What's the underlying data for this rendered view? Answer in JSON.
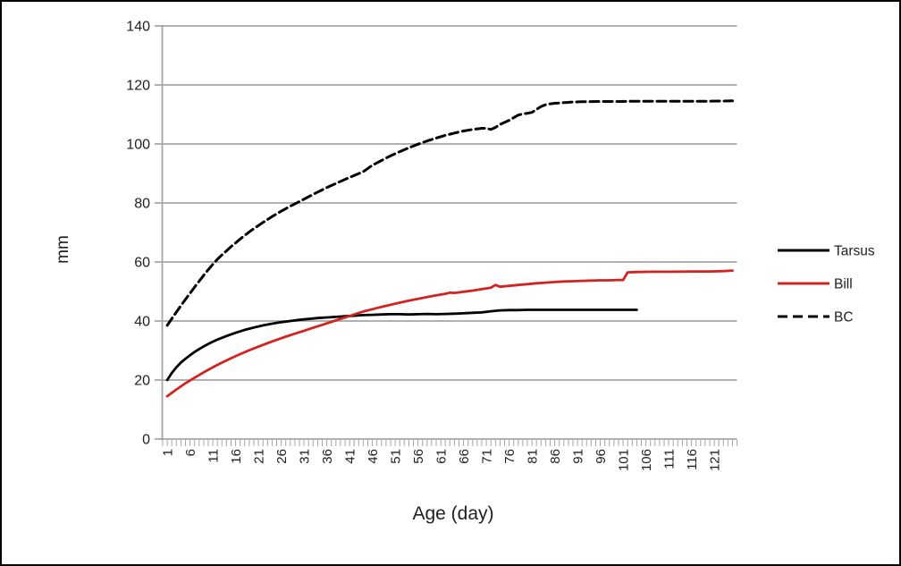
{
  "chart_data": {
    "type": "line",
    "title": "",
    "xlabel": "Age (day)",
    "ylabel": "mm",
    "xlim": [
      0,
      126
    ],
    "ylim": [
      0,
      140
    ],
    "yticks": [
      0,
      20,
      40,
      60,
      80,
      100,
      120,
      140
    ],
    "xtick_labels": [
      "1",
      "6",
      "11",
      "16",
      "21",
      "26",
      "31",
      "36",
      "41",
      "46",
      "51",
      "56",
      "61",
      "66",
      "71",
      "76",
      "81",
      "86",
      "91",
      "96",
      "101",
      "106",
      "111",
      "116",
      "121"
    ],
    "minor_xticks": "one tick per day from day 0 to day 126",
    "grid": "horizontal gridlines every 20 mm",
    "legend_position": "right",
    "colors": {
      "gridline": "#a6a6a6",
      "axis": "#a6a6a6",
      "label_text": "#1f1f1f",
      "tarsus": "#000000",
      "bill": "#d12420",
      "bc": "#000000"
    },
    "series": [
      {
        "name": "Tarsus",
        "style": "solid",
        "color_key": "tarsus",
        "points": [
          [
            1,
            20
          ],
          [
            2,
            22.4
          ],
          [
            3,
            24.3
          ],
          [
            4,
            25.9
          ],
          [
            5,
            27.2
          ],
          [
            6,
            28.4
          ],
          [
            7,
            29.5
          ],
          [
            8,
            30.5
          ],
          [
            9,
            31.4
          ],
          [
            10,
            32.2
          ],
          [
            11,
            33
          ],
          [
            12,
            33.7
          ],
          [
            13,
            34.3
          ],
          [
            14,
            34.9
          ],
          [
            15,
            35.5
          ],
          [
            16,
            36
          ],
          [
            17,
            36.5
          ],
          [
            18,
            37
          ],
          [
            19,
            37.4
          ],
          [
            20,
            37.8
          ],
          [
            22,
            38.5
          ],
          [
            24,
            39.1
          ],
          [
            26,
            39.6
          ],
          [
            28,
            40
          ],
          [
            30,
            40.4
          ],
          [
            32,
            40.7
          ],
          [
            34,
            41
          ],
          [
            36,
            41.2
          ],
          [
            38,
            41.4
          ],
          [
            40,
            41.6
          ],
          [
            42,
            41.8
          ],
          [
            44,
            42
          ],
          [
            46,
            42.1
          ],
          [
            48,
            42.2
          ],
          [
            50,
            42.3
          ],
          [
            52,
            42.3
          ],
          [
            54,
            42.2
          ],
          [
            56,
            42.3
          ],
          [
            58,
            42.4
          ],
          [
            60,
            42.3
          ],
          [
            62,
            42.4
          ],
          [
            64,
            42.5
          ],
          [
            66,
            42.6
          ],
          [
            68,
            42.8
          ],
          [
            70,
            42.9
          ],
          [
            72,
            43.3
          ],
          [
            74,
            43.6
          ],
          [
            76,
            43.7
          ],
          [
            78,
            43.7
          ],
          [
            80,
            43.8
          ],
          [
            84,
            43.8
          ],
          [
            88,
            43.8
          ],
          [
            92,
            43.8
          ],
          [
            96,
            43.8
          ],
          [
            100,
            43.8
          ],
          [
            104,
            43.8
          ]
        ]
      },
      {
        "name": "Bill",
        "style": "solid",
        "color_key": "bill",
        "points": [
          [
            1,
            14.5
          ],
          [
            3,
            16.8
          ],
          [
            5,
            18.9
          ],
          [
            7,
            20.8
          ],
          [
            9,
            22.6
          ],
          [
            11,
            24.3
          ],
          [
            13,
            25.9
          ],
          [
            15,
            27.4
          ],
          [
            17,
            28.8
          ],
          [
            19,
            30.1
          ],
          [
            21,
            31.3
          ],
          [
            23,
            32.5
          ],
          [
            25,
            33.6
          ],
          [
            27,
            34.7
          ],
          [
            29,
            35.7
          ],
          [
            31,
            36.7
          ],
          [
            33,
            37.7
          ],
          [
            35,
            38.7
          ],
          [
            37,
            39.7
          ],
          [
            38,
            40.2
          ],
          [
            39,
            40.7
          ],
          [
            40,
            41.2
          ],
          [
            41,
            41.7
          ],
          [
            42,
            42.2
          ],
          [
            43,
            42.7
          ],
          [
            44,
            43.2
          ],
          [
            45,
            43.6
          ],
          [
            46,
            44
          ],
          [
            48,
            44.8
          ],
          [
            50,
            45.5
          ],
          [
            52,
            46.2
          ],
          [
            54,
            46.9
          ],
          [
            56,
            47.5
          ],
          [
            58,
            48.1
          ],
          [
            60,
            48.7
          ],
          [
            62,
            49.2
          ],
          [
            63,
            49.6
          ],
          [
            64,
            49.5
          ],
          [
            66,
            49.9
          ],
          [
            68,
            50.3
          ],
          [
            70,
            50.8
          ],
          [
            72,
            51.3
          ],
          [
            73,
            52.2
          ],
          [
            74,
            51.6
          ],
          [
            76,
            51.9
          ],
          [
            78,
            52.2
          ],
          [
            80,
            52.5
          ],
          [
            82,
            52.8
          ],
          [
            84,
            53
          ],
          [
            86,
            53.2
          ],
          [
            88,
            53.4
          ],
          [
            90,
            53.5
          ],
          [
            92,
            53.6
          ],
          [
            94,
            53.7
          ],
          [
            96,
            53.8
          ],
          [
            98,
            53.8
          ],
          [
            100,
            53.9
          ],
          [
            101,
            53.9
          ],
          [
            102,
            56.5
          ],
          [
            104,
            56.6
          ],
          [
            108,
            56.7
          ],
          [
            112,
            56.7
          ],
          [
            116,
            56.8
          ],
          [
            120,
            56.8
          ],
          [
            123,
            56.9
          ],
          [
            125,
            57.1
          ]
        ]
      },
      {
        "name": "BC",
        "style": "dashed",
        "color_key": "bc",
        "points": [
          [
            1,
            38.5
          ],
          [
            2,
            40.8
          ],
          [
            3,
            43
          ],
          [
            4,
            45.2
          ],
          [
            5,
            47.3
          ],
          [
            6,
            49.4
          ],
          [
            7,
            51.5
          ],
          [
            8,
            53.5
          ],
          [
            9,
            55.5
          ],
          [
            10,
            57.4
          ],
          [
            11,
            59.2
          ],
          [
            12,
            60.9
          ],
          [
            13,
            62.4
          ],
          [
            14,
            63.8
          ],
          [
            15,
            65.2
          ],
          [
            16,
            66.5
          ],
          [
            17,
            67.8
          ],
          [
            18,
            69
          ],
          [
            19,
            70.2
          ],
          [
            20,
            71.3
          ],
          [
            22,
            73.4
          ],
          [
            24,
            75.4
          ],
          [
            26,
            77.2
          ],
          [
            28,
            78.9
          ],
          [
            30,
            80.5
          ],
          [
            32,
            82.1
          ],
          [
            34,
            83.7
          ],
          [
            36,
            85.2
          ],
          [
            38,
            86.6
          ],
          [
            40,
            88
          ],
          [
            42,
            89.3
          ],
          [
            44,
            90.6
          ],
          [
            46,
            92.8
          ],
          [
            48,
            94.4
          ],
          [
            50,
            96
          ],
          [
            52,
            97.4
          ],
          [
            54,
            98.7
          ],
          [
            56,
            99.9
          ],
          [
            58,
            101
          ],
          [
            60,
            102
          ],
          [
            62,
            102.9
          ],
          [
            64,
            103.7
          ],
          [
            66,
            104.4
          ],
          [
            68,
            104.9
          ],
          [
            70,
            105.3
          ],
          [
            71,
            105.3
          ],
          [
            72,
            104.9
          ],
          [
            73,
            105.6
          ],
          [
            74,
            106.6
          ],
          [
            75,
            107.3
          ],
          [
            76,
            108
          ],
          [
            77,
            108.9
          ],
          [
            78,
            109.8
          ],
          [
            79,
            110.2
          ],
          [
            80,
            110.4
          ],
          [
            81,
            110.7
          ],
          [
            82,
            111.7
          ],
          [
            83,
            112.7
          ],
          [
            84,
            113.3
          ],
          [
            85,
            113.6
          ],
          [
            86,
            113.8
          ],
          [
            88,
            114
          ],
          [
            90,
            114.2
          ],
          [
            92,
            114.3
          ],
          [
            96,
            114.4
          ],
          [
            100,
            114.4
          ],
          [
            104,
            114.5
          ],
          [
            108,
            114.5
          ],
          [
            112,
            114.5
          ],
          [
            116,
            114.5
          ],
          [
            120,
            114.5
          ],
          [
            125,
            114.6
          ]
        ]
      }
    ]
  }
}
